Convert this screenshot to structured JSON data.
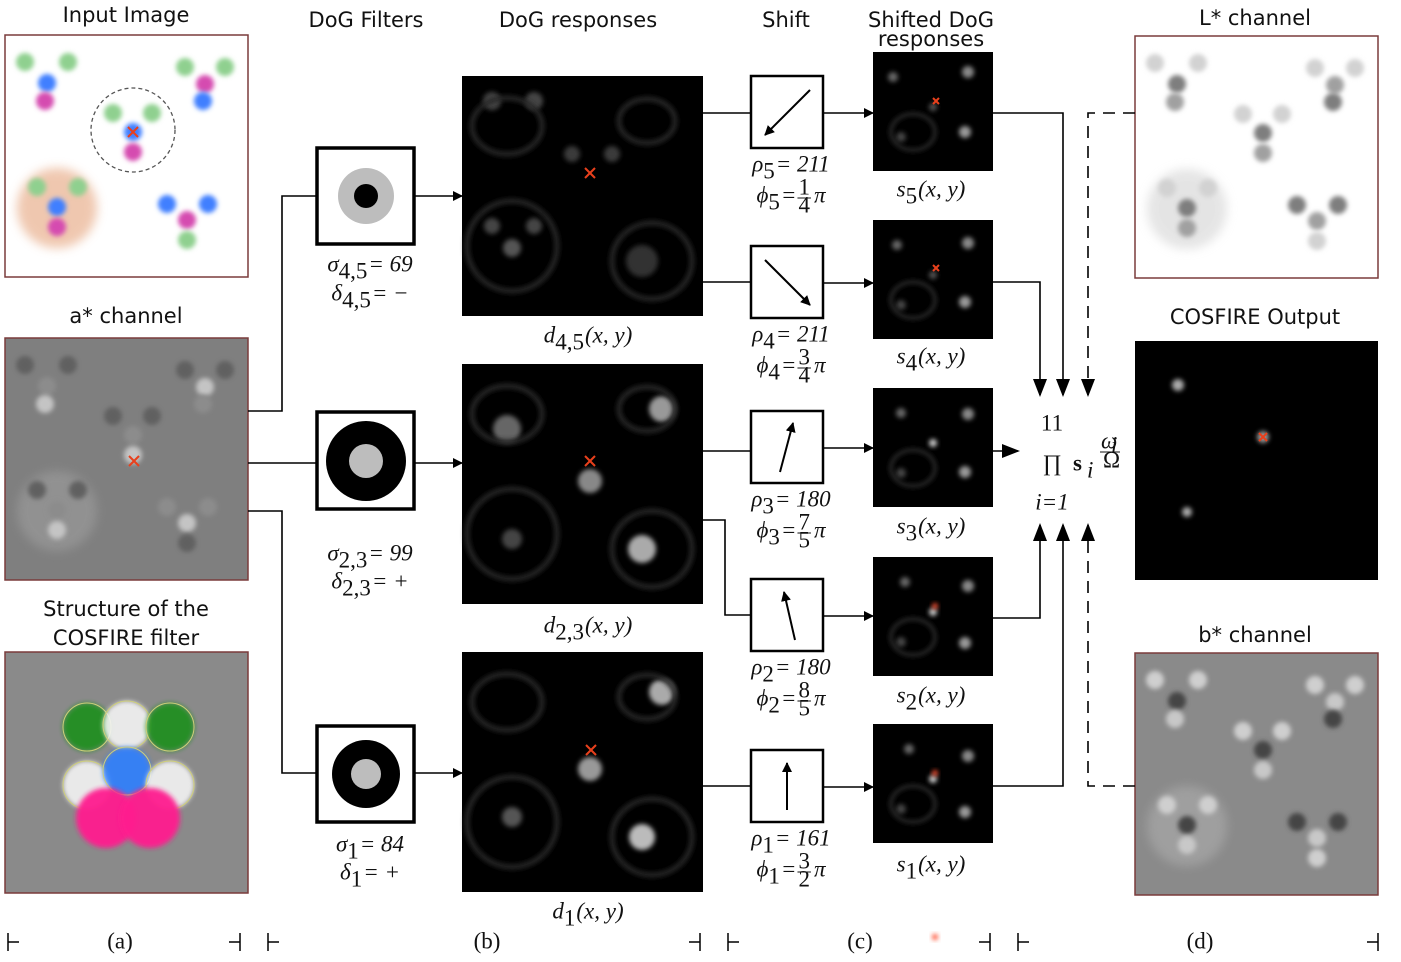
{
  "headers": {
    "input_image": "Input Image",
    "dog_filters": "DoG Filters",
    "dog_responses": "DoG responses",
    "shift": "Shift",
    "shifted_line1": "Shifted DoG",
    "shifted_line2": "responses",
    "l_channel": "L* channel",
    "a_channel": "a* channel",
    "structure_line1": "Structure of the",
    "structure_line2": "COSFIRE filter",
    "cosfire_output": "COSFIRE Output",
    "b_channel": "b* channel"
  },
  "panel_labels": [
    "(a)",
    "(b)",
    "(c)",
    "(d)"
  ],
  "filters": [
    {
      "sigma": [
        {
          "text": "σ"
        },
        {
          "sub": "4,5"
        },
        {
          "text": " = 69"
        }
      ],
      "delta": [
        {
          "text": "δ"
        },
        {
          "sub": "4,5"
        },
        {
          "text": " = −"
        }
      ]
    },
    {
      "sigma": [
        {
          "text": "σ"
        },
        {
          "sub": "2,3"
        },
        {
          "text": " = 99"
        }
      ],
      "delta": [
        {
          "text": "δ"
        },
        {
          "sub": "2,3"
        },
        {
          "text": " = +"
        }
      ]
    },
    {
      "sigma": [
        {
          "text": "σ"
        },
        {
          "sub": "1"
        },
        {
          "text": " = 84"
        }
      ],
      "delta": [
        {
          "text": "δ"
        },
        {
          "sub": "1"
        },
        {
          "text": " = +"
        }
      ]
    }
  ],
  "responses": [
    [
      {
        "text": "d"
      },
      {
        "sub": "4,5"
      },
      {
        "text": "(x, y)"
      }
    ],
    [
      {
        "text": "d"
      },
      {
        "sub": "2,3"
      },
      {
        "text": "(x, y)"
      }
    ],
    [
      {
        "text": "d"
      },
      {
        "sub": "1"
      },
      {
        "text": "(x, y)"
      }
    ]
  ],
  "shifts": [
    {
      "rho": [
        {
          "text": "ρ"
        },
        {
          "sub": "5"
        },
        {
          "text": " = 211"
        }
      ],
      "phi": [
        {
          "text": "ϕ"
        },
        {
          "sub": "5"
        },
        {
          "text": " = "
        },
        {
          "num": "1",
          "den": "4"
        },
        {
          "text": "π"
        }
      ]
    },
    {
      "rho": [
        {
          "text": "ρ"
        },
        {
          "sub": "4"
        },
        {
          "text": " = 211"
        }
      ],
      "phi": [
        {
          "text": "ϕ"
        },
        {
          "sub": "4"
        },
        {
          "text": " = "
        },
        {
          "num": "3",
          "den": "4"
        },
        {
          "text": "π"
        }
      ]
    },
    {
      "rho": [
        {
          "text": "ρ"
        },
        {
          "sub": "3"
        },
        {
          "text": " = 180"
        }
      ],
      "phi": [
        {
          "text": "ϕ"
        },
        {
          "sub": "3"
        },
        {
          "text": " = "
        },
        {
          "num": "7",
          "den": "5"
        },
        {
          "text": "π"
        }
      ]
    },
    {
      "rho": [
        {
          "text": "ρ"
        },
        {
          "sub": "2"
        },
        {
          "text": " = 180"
        }
      ],
      "phi": [
        {
          "text": "ϕ"
        },
        {
          "sub": "2"
        },
        {
          "text": " = "
        },
        {
          "num": "8",
          "den": "5"
        },
        {
          "text": "π"
        }
      ]
    },
    {
      "rho": [
        {
          "text": "ρ"
        },
        {
          "sub": "1"
        },
        {
          "text": " = 161"
        }
      ],
      "phi": [
        {
          "text": "ϕ"
        },
        {
          "sub": "1"
        },
        {
          "text": " = "
        },
        {
          "num": "3",
          "den": "2"
        },
        {
          "text": "π"
        }
      ]
    }
  ],
  "shifted": [
    [
      {
        "text": "s"
      },
      {
        "sub": "5"
      },
      {
        "text": "(x, y)"
      }
    ],
    [
      {
        "text": "s"
      },
      {
        "sub": "4"
      },
      {
        "text": "(x, y)"
      }
    ],
    [
      {
        "text": "s"
      },
      {
        "sub": "3"
      },
      {
        "text": "(x, y)"
      }
    ],
    [
      {
        "text": "s"
      },
      {
        "sub": "2"
      },
      {
        "text": "(x, y)"
      }
    ],
    [
      {
        "text": "s"
      },
      {
        "sub": "1"
      },
      {
        "text": "(x, y)"
      }
    ]
  ],
  "product": {
    "symbol": "∏",
    "upper": "11",
    "lower": "i=1",
    "base": "s",
    "base_sub": "i",
    "exp_num": "ω",
    "exp_num_sub": "i",
    "exp_den": "Ω"
  }
}
